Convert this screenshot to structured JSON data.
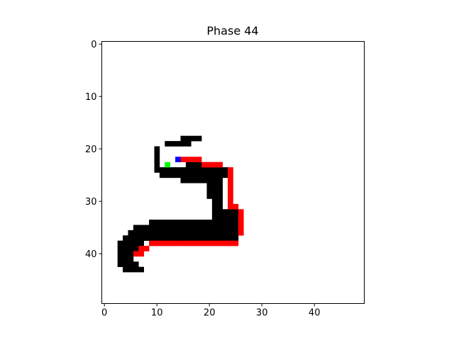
{
  "chart_data": {
    "type": "heatmap",
    "title": "Phase 44",
    "xlabel": "",
    "ylabel": "",
    "grid_size": [
      50,
      50
    ],
    "xlim": [
      -0.5,
      49.5
    ],
    "ylim": [
      49.5,
      -0.5
    ],
    "x_ticks": [
      0,
      10,
      20,
      30,
      40
    ],
    "y_ticks": [
      0,
      10,
      20,
      30,
      40
    ],
    "y_inverted": true,
    "grid": false,
    "colors": {
      "background": "#ffffff",
      "wall": "#000000",
      "path": "#ff0000",
      "start": "#00ff00",
      "goal": "#0000ff"
    },
    "wall_rows": [
      {
        "y": 18,
        "x": [
          [
            15,
            18
          ]
        ]
      },
      {
        "y": 19,
        "x": [
          [
            12,
            16
          ]
        ]
      },
      {
        "y": 20,
        "x": [
          [
            10,
            10
          ]
        ]
      },
      {
        "y": 21,
        "x": [
          [
            10,
            10
          ]
        ]
      },
      {
        "y": 22,
        "x": [
          [
            10,
            10
          ]
        ]
      },
      {
        "y": 23,
        "x": [
          [
            10,
            10
          ]
        ]
      },
      {
        "y": 23,
        "x": [
          [
            16,
            18
          ]
        ]
      },
      {
        "y": 24,
        "x": [
          [
            10,
            23
          ]
        ]
      },
      {
        "y": 25,
        "x": [
          [
            11,
            23
          ]
        ]
      },
      {
        "y": 26,
        "x": [
          [
            15,
            22
          ]
        ]
      },
      {
        "y": 27,
        "x": [
          [
            20,
            22
          ]
        ]
      },
      {
        "y": 28,
        "x": [
          [
            20,
            22
          ]
        ]
      },
      {
        "y": 29,
        "x": [
          [
            20,
            22
          ]
        ]
      },
      {
        "y": 30,
        "x": [
          [
            21,
            22
          ]
        ]
      },
      {
        "y": 31,
        "x": [
          [
            21,
            22
          ]
        ]
      },
      {
        "y": 32,
        "x": [
          [
            21,
            25
          ]
        ]
      },
      {
        "y": 33,
        "x": [
          [
            21,
            25
          ]
        ]
      },
      {
        "y": 34,
        "x": [
          [
            9,
            25
          ]
        ]
      },
      {
        "y": 35,
        "x": [
          [
            6,
            25
          ]
        ]
      },
      {
        "y": 36,
        "x": [
          [
            5,
            25
          ]
        ]
      },
      {
        "y": 37,
        "x": [
          [
            4,
            25
          ]
        ]
      },
      {
        "y": 38,
        "x": [
          [
            3,
            7
          ]
        ]
      },
      {
        "y": 39,
        "x": [
          [
            3,
            6
          ]
        ]
      },
      {
        "y": 40,
        "x": [
          [
            3,
            5
          ]
        ]
      },
      {
        "y": 41,
        "x": [
          [
            3,
            5
          ]
        ]
      },
      {
        "y": 42,
        "x": [
          [
            3,
            6
          ]
        ]
      },
      {
        "y": 43,
        "x": [
          [
            4,
            7
          ]
        ]
      }
    ],
    "path_cells": [
      [
        15,
        22
      ],
      [
        16,
        22
      ],
      [
        17,
        22
      ],
      [
        18,
        22
      ],
      [
        19,
        23
      ],
      [
        20,
        23
      ],
      [
        21,
        23
      ],
      [
        22,
        23
      ],
      [
        24,
        24
      ],
      [
        24,
        25
      ],
      [
        24,
        26
      ],
      [
        24,
        27
      ],
      [
        24,
        28
      ],
      [
        24,
        29
      ],
      [
        24,
        30
      ],
      [
        24,
        31
      ],
      [
        25,
        31
      ],
      [
        26,
        32
      ],
      [
        26,
        33
      ],
      [
        26,
        34
      ],
      [
        26,
        35
      ],
      [
        26,
        36
      ],
      [
        9,
        38
      ],
      [
        10,
        38
      ],
      [
        11,
        38
      ],
      [
        12,
        38
      ],
      [
        13,
        38
      ],
      [
        14,
        38
      ],
      [
        15,
        38
      ],
      [
        16,
        38
      ],
      [
        17,
        38
      ],
      [
        18,
        38
      ],
      [
        19,
        38
      ],
      [
        20,
        38
      ],
      [
        21,
        38
      ],
      [
        22,
        38
      ],
      [
        23,
        38
      ],
      [
        24,
        38
      ],
      [
        25,
        38
      ],
      [
        7,
        39
      ],
      [
        8,
        39
      ],
      [
        6,
        40
      ],
      [
        7,
        40
      ]
    ],
    "start_cell": [
      12,
      23
    ],
    "goal_cell": [
      14,
      22
    ]
  }
}
